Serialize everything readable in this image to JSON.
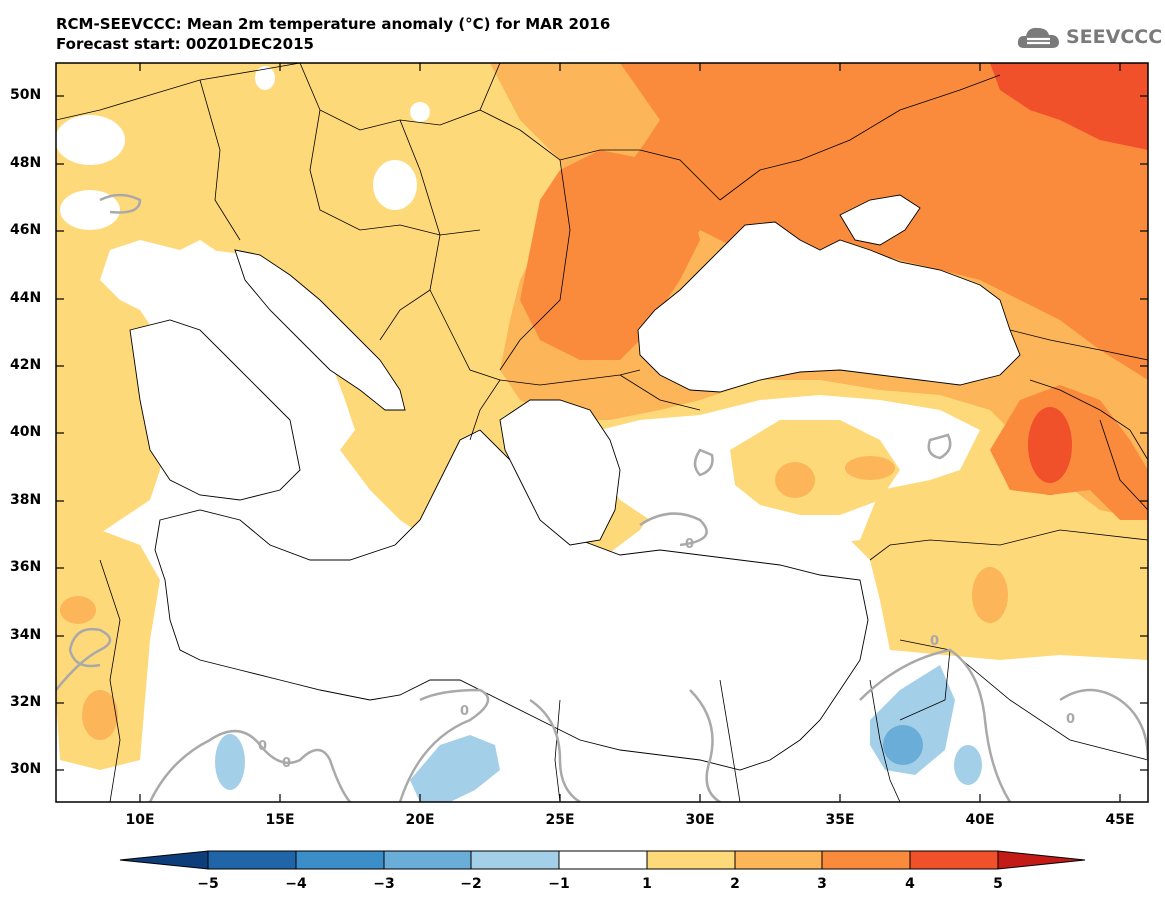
{
  "header": {
    "title_line1": "RCM-SEEVCCC: Mean 2m temperature anomaly (°C) for MAR 2016",
    "title_line2": "Forecast start: 00Z01DEC2015"
  },
  "logo": {
    "text": "SEEVCCC",
    "icon": "cloud-icon",
    "color": "#7a7a7a"
  },
  "map": {
    "lat_ticks": [
      "50N",
      "48N",
      "46N",
      "44N",
      "42N",
      "40N",
      "38N",
      "36N",
      "34N",
      "32N",
      "30N"
    ],
    "lon_ticks": [
      "10E",
      "15E",
      "20E",
      "25E",
      "30E",
      "35E",
      "40E",
      "45E"
    ],
    "lat_range": [
      29,
      51
    ],
    "lon_range": [
      7,
      46
    ],
    "contour_labels": [
      "0",
      "0",
      "0",
      "0",
      "0",
      "0"
    ]
  },
  "colorbar": {
    "labels": [
      "−5",
      "−4",
      "−3",
      "−2",
      "−1",
      "1",
      "2",
      "3",
      "4",
      "5"
    ],
    "colors": [
      "#0d3d7a",
      "#1f65a8",
      "#3c8ec9",
      "#6aadd9",
      "#a4cfe8",
      "#ffffff",
      "#fed97a",
      "#fcb558",
      "#fa8b3c",
      "#f0502a",
      "#c51b17"
    ]
  }
}
